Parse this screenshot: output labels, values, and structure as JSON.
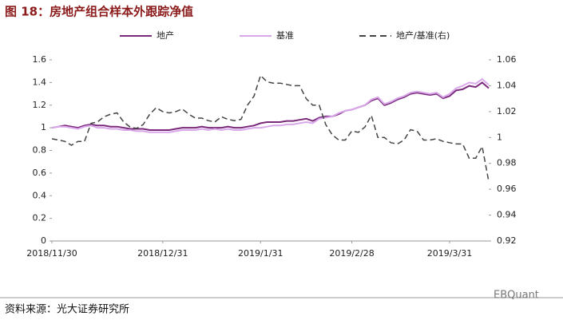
{
  "chart_data": {
    "type": "line",
    "title": "图 18：房地产组合样本外跟踪净值",
    "source": "资料来源：光大证券研究所",
    "watermark": "EBQuant",
    "legend": "top",
    "categories": [
      "2018/11/30",
      null,
      null,
      null,
      null,
      null,
      null,
      null,
      null,
      null,
      null,
      null,
      null,
      null,
      null,
      null,
      null,
      "2018/12/31",
      null,
      null,
      null,
      null,
      null,
      null,
      null,
      null,
      null,
      null,
      null,
      null,
      null,
      null,
      "2019/1/31",
      null,
      null,
      null,
      null,
      null,
      null,
      null,
      null,
      null,
      null,
      null,
      null,
      null,
      "2019/2/28",
      null,
      null,
      null,
      null,
      null,
      null,
      null,
      null,
      null,
      null,
      null,
      null,
      null,
      null,
      "2019/3/31",
      null,
      null,
      null,
      null,
      null,
      null
    ],
    "ylim": [
      0,
      1.6
    ],
    "yticks": [
      0,
      0.2,
      0.4,
      0.6,
      0.8,
      1,
      1.2,
      1.4,
      1.6
    ],
    "y2lim": [
      0.92,
      1.06
    ],
    "y2ticks": [
      0.92,
      0.94,
      0.96,
      0.98,
      1,
      1.02,
      1.04,
      1.06
    ],
    "series": [
      {
        "name": "地产",
        "color": "#7b2a7b",
        "dash": false,
        "values": [
          1.0,
          1.01,
          1.02,
          1.01,
          1.0,
          1.02,
          1.03,
          1.02,
          1.02,
          1.01,
          1.01,
          1.0,
          0.99,
          0.99,
          0.99,
          0.98,
          0.98,
          0.98,
          0.98,
          0.99,
          1.0,
          1.0,
          1.0,
          1.01,
          1.0,
          1.0,
          1.0,
          1.01,
          1.0,
          1.0,
          1.01,
          1.02,
          1.04,
          1.05,
          1.05,
          1.05,
          1.06,
          1.06,
          1.07,
          1.08,
          1.06,
          1.09,
          1.1,
          1.1,
          1.12,
          1.15,
          1.16,
          1.18,
          1.2,
          1.24,
          1.26,
          1.2,
          1.22,
          1.25,
          1.27,
          1.3,
          1.31,
          1.3,
          1.29,
          1.3,
          1.26,
          1.28,
          1.33,
          1.34,
          1.37,
          1.36,
          1.4,
          1.35
        ]
      },
      {
        "name": "基准",
        "color": "#d9a8ea",
        "dash": false,
        "values": [
          1.0,
          1.01,
          1.01,
          1.0,
          0.99,
          1.01,
          1.02,
          1.0,
          1.0,
          0.99,
          0.99,
          0.98,
          0.98,
          0.97,
          0.97,
          0.96,
          0.96,
          0.96,
          0.96,
          0.97,
          0.98,
          0.98,
          0.98,
          0.99,
          0.98,
          0.99,
          0.98,
          0.99,
          0.98,
          0.98,
          0.99,
          1.0,
          1.0,
          1.01,
          1.02,
          1.02,
          1.03,
          1.03,
          1.04,
          1.05,
          1.04,
          1.08,
          1.09,
          1.1,
          1.13,
          1.15,
          1.16,
          1.18,
          1.2,
          1.25,
          1.27,
          1.21,
          1.23,
          1.26,
          1.28,
          1.31,
          1.32,
          1.31,
          1.3,
          1.31,
          1.27,
          1.3,
          1.35,
          1.37,
          1.4,
          1.39,
          1.43,
          1.38
        ]
      },
      {
        "name": "地产/基准(右)",
        "color": "#444444",
        "dash": true,
        "axis": "y2",
        "values": [
          0.999,
          0.998,
          0.997,
          0.994,
          0.997,
          0.997,
          1.011,
          1.012,
          1.016,
          1.018,
          1.019,
          1.012,
          1.008,
          1.007,
          1.01,
          1.018,
          1.023,
          1.02,
          1.019,
          1.02,
          1.022,
          1.018,
          1.015,
          1.015,
          1.013,
          1.012,
          1.016,
          1.014,
          1.013,
          1.014,
          1.025,
          1.032,
          1.048,
          1.043,
          1.042,
          1.042,
          1.041,
          1.04,
          1.04,
          1.03,
          1.025,
          1.025,
          1.01,
          1.002,
          0.998,
          0.998,
          1.005,
          1.004,
          1.008,
          1.017,
          1.0,
          1.0,
          0.996,
          0.995,
          0.998,
          1.006,
          1.005,
          0.998,
          0.998,
          0.999,
          0.997,
          0.996,
          0.995,
          0.995,
          0.984,
          0.984,
          0.993,
          0.966
        ]
      }
    ]
  }
}
